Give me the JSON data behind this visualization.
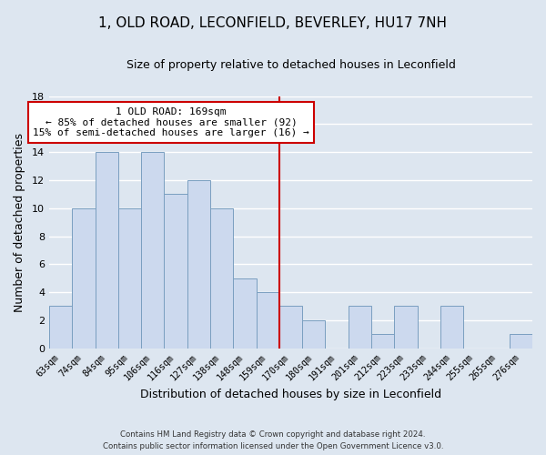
{
  "title": "1, OLD ROAD, LECONFIELD, BEVERLEY, HU17 7NH",
  "subtitle": "Size of property relative to detached houses in Leconfield",
  "xlabel": "Distribution of detached houses by size in Leconfield",
  "ylabel": "Number of detached properties",
  "bar_color": "#ccd9ee",
  "bar_edge_color": "#7a9fc0",
  "categories": [
    "63sqm",
    "74sqm",
    "84sqm",
    "95sqm",
    "106sqm",
    "116sqm",
    "127sqm",
    "138sqm",
    "148sqm",
    "159sqm",
    "170sqm",
    "180sqm",
    "191sqm",
    "201sqm",
    "212sqm",
    "223sqm",
    "233sqm",
    "244sqm",
    "255sqm",
    "265sqm",
    "276sqm"
  ],
  "values": [
    3,
    10,
    14,
    10,
    14,
    11,
    12,
    10,
    5,
    4,
    3,
    2,
    0,
    3,
    1,
    3,
    0,
    3,
    0,
    0,
    1
  ],
  "ylim": [
    0,
    18
  ],
  "yticks": [
    0,
    2,
    4,
    6,
    8,
    10,
    12,
    14,
    16,
    18
  ],
  "vline_x": 9.5,
  "vline_color": "#cc0000",
  "annotation_title": "1 OLD ROAD: 169sqm",
  "annotation_line1": "← 85% of detached houses are smaller (92)",
  "annotation_line2": "15% of semi-detached houses are larger (16) →",
  "annotation_box_color": "#ffffff",
  "annotation_box_edge": "#cc0000",
  "footer_line1": "Contains HM Land Registry data © Crown copyright and database right 2024.",
  "footer_line2": "Contains public sector information licensed under the Open Government Licence v3.0.",
  "grid_color": "#ffffff",
  "bg_color": "#dde6f0",
  "title_fontsize": 11,
  "subtitle_fontsize": 9,
  "xlabel_fontsize": 9,
  "ylabel_fontsize": 9
}
